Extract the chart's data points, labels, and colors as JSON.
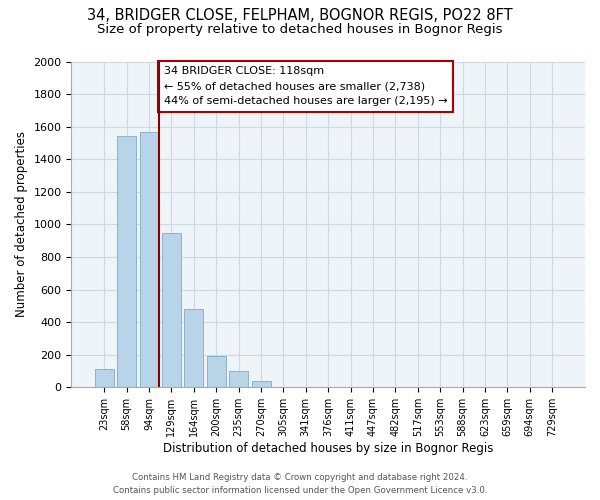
{
  "title": "34, BRIDGER CLOSE, FELPHAM, BOGNOR REGIS, PO22 8FT",
  "subtitle": "Size of property relative to detached houses in Bognor Regis",
  "xlabel": "Distribution of detached houses by size in Bognor Regis",
  "ylabel": "Number of detached properties",
  "categories": [
    "23sqm",
    "58sqm",
    "94sqm",
    "129sqm",
    "164sqm",
    "200sqm",
    "235sqm",
    "270sqm",
    "305sqm",
    "341sqm",
    "376sqm",
    "411sqm",
    "447sqm",
    "482sqm",
    "517sqm",
    "553sqm",
    "588sqm",
    "623sqm",
    "659sqm",
    "694sqm",
    "729sqm"
  ],
  "values": [
    110,
    1540,
    1570,
    950,
    480,
    190,
    100,
    38,
    0,
    0,
    0,
    0,
    0,
    0,
    0,
    0,
    0,
    0,
    0,
    0,
    0
  ],
  "bar_color": "#b8d4e8",
  "bar_edge_color": "#8ab4cc",
  "vline_color": "#8b0000",
  "annotation_title": "34 BRIDGER CLOSE: 118sqm",
  "annotation_line1": "← 55% of detached houses are smaller (2,738)",
  "annotation_line2": "44% of semi-detached houses are larger (2,195) →",
  "annotation_box_color": "#ffffff",
  "annotation_box_edge": "#aa0000",
  "ylim": [
    0,
    2000
  ],
  "yticks": [
    0,
    200,
    400,
    600,
    800,
    1000,
    1200,
    1400,
    1600,
    1800,
    2000
  ],
  "title_fontsize": 10.5,
  "subtitle_fontsize": 9.5,
  "footer_line1": "Contains HM Land Registry data © Crown copyright and database right 2024.",
  "footer_line2": "Contains public sector information licensed under the Open Government Licence v3.0.",
  "background_color": "#ffffff",
  "grid_color": "#ccd8e4",
  "plot_bg_color": "#eef4f8"
}
